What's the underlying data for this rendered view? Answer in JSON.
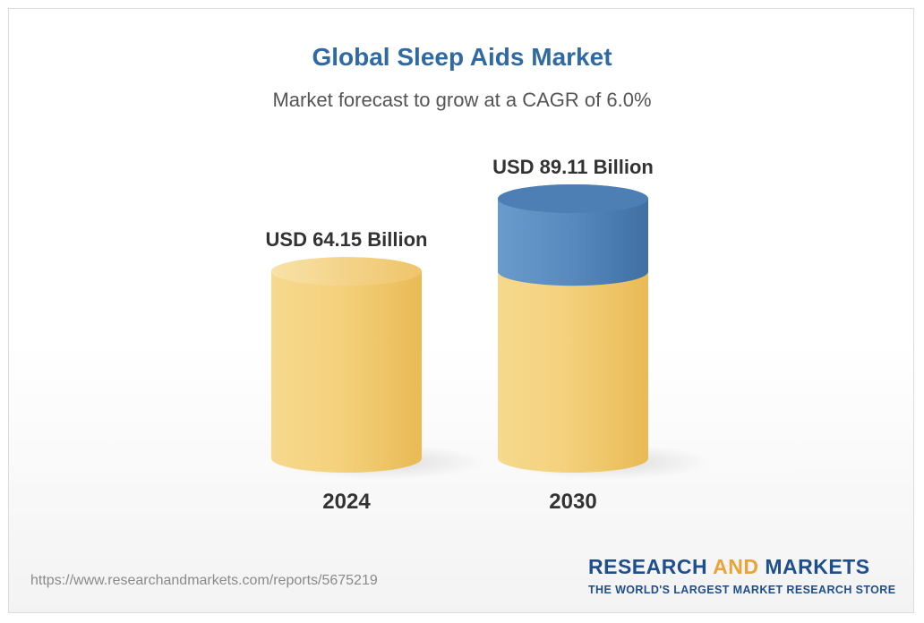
{
  "chart_data": {
    "type": "bar",
    "title": "Global Sleep Aids Market",
    "subtitle": "Market forecast to grow at a CAGR of 6.0%",
    "categories": [
      "2024",
      "2030"
    ],
    "values": [
      64.15,
      89.11
    ],
    "value_labels": [
      "USD 64.15 Billion",
      "USD 89.11 Billion"
    ],
    "xlabel": "",
    "ylabel": "",
    "grid": false,
    "colors": {
      "base": "#f2c96a",
      "growth": "#4e82b8",
      "title": "#2f6aa3",
      "brand": "#1f4e8c",
      "brand_accent": "#e8a33a"
    }
  },
  "footer": {
    "source_url": "https://www.researchandmarkets.com/reports/5675219",
    "brand_part1": "RESEARCH ",
    "brand_part2": "AND",
    "brand_part3": " MARKETS",
    "tagline": "THE WORLD'S LARGEST MARKET RESEARCH STORE"
  }
}
